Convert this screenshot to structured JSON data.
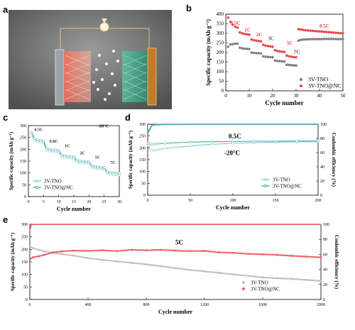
{
  "panels": {
    "a": "a",
    "b": "b",
    "c": "c",
    "d": "d",
    "e": "e"
  },
  "chart_data": [
    {
      "id": "b",
      "type": "scatter",
      "xlabel": "Cycle number",
      "ylabel": "Specific capacity (mAh g⁻¹)",
      "xlim": [
        0,
        50
      ],
      "ylim": [
        0,
        400
      ],
      "xticks": [
        0,
        10,
        20,
        30,
        40,
        50
      ],
      "yticks": [
        0,
        50,
        100,
        150,
        200,
        250,
        300,
        350,
        400
      ],
      "legend": [
        "3V-TNO",
        "3V-TNO@NC"
      ],
      "legend_position": "bottom-right",
      "annotations": [
        "0.5C",
        "1C",
        "2C",
        "3C",
        "5C",
        "7C",
        "0.5C"
      ],
      "series": [
        {
          "name": "3V-TNO",
          "color": "#7f7f7f",
          "x": [
            1,
            2,
            3,
            4,
            5,
            6,
            7,
            8,
            9,
            10,
            11,
            12,
            13,
            14,
            15,
            16,
            17,
            18,
            19,
            20,
            21,
            22,
            23,
            24,
            25,
            26,
            27,
            28,
            29,
            30,
            31,
            32,
            33,
            34,
            35,
            36,
            37,
            38,
            39,
            40,
            41,
            42,
            43,
            44,
            45,
            46,
            47,
            48,
            49,
            50
          ],
          "y": [
            230,
            242,
            244,
            246,
            246,
            225,
            222,
            220,
            219,
            218,
            200,
            198,
            197,
            196,
            195,
            180,
            178,
            177,
            176,
            175,
            158,
            156,
            155,
            154,
            153,
            136,
            135,
            134,
            133,
            132,
            262,
            266,
            268,
            268,
            269,
            269,
            270,
            270,
            270,
            270,
            270,
            271,
            271,
            271,
            271,
            271,
            270,
            270,
            270,
            270
          ]
        },
        {
          "name": "3V-TNO@NC",
          "color": "#e8474c",
          "x": [
            1,
            2,
            3,
            4,
            5,
            6,
            7,
            8,
            9,
            10,
            11,
            12,
            13,
            14,
            15,
            16,
            17,
            18,
            19,
            20,
            21,
            22,
            23,
            24,
            25,
            26,
            27,
            28,
            29,
            30,
            31,
            32,
            33,
            34,
            35,
            36,
            37,
            38,
            39,
            40,
            41,
            42,
            43,
            44,
            45,
            46,
            47,
            48,
            49,
            50
          ],
          "y": [
            382,
            360,
            345,
            335,
            330,
            305,
            300,
            297,
            295,
            293,
            268,
            264,
            262,
            260,
            258,
            240,
            236,
            234,
            232,
            230,
            212,
            208,
            206,
            204,
            203,
            184,
            180,
            178,
            176,
            175,
            322,
            320,
            318,
            316,
            315,
            314,
            313,
            312,
            311,
            310,
            309,
            308,
            307,
            306,
            305,
            304,
            303,
            302,
            301,
            300
          ]
        }
      ]
    },
    {
      "id": "c",
      "type": "line",
      "xlabel": "Cycle number",
      "ylabel": "Specific capacity (mAh g⁻¹)",
      "xlim": [
        0,
        30
      ],
      "ylim": [
        0,
        300
      ],
      "xticks": [
        0,
        5,
        10,
        15,
        20,
        25,
        30
      ],
      "yticks": [
        0,
        50,
        100,
        150,
        200,
        250,
        300
      ],
      "legend": [
        "3V-TNO",
        "3V-TNO@NC"
      ],
      "legend_position": "bottom-left",
      "annotations": [
        "-20°C",
        "0.5C",
        "0.8C",
        "1C",
        "2C",
        "5C",
        "7C"
      ],
      "series": [
        {
          "name": "3V-TNO",
          "color": "#7fc9cf",
          "x": [
            1,
            2,
            3,
            4,
            5,
            6,
            7,
            8,
            9,
            10,
            11,
            12,
            13,
            14,
            15,
            16,
            17,
            18,
            19,
            20,
            21,
            22,
            23,
            24,
            25,
            26,
            27,
            28,
            29,
            30
          ],
          "y": [
            262,
            238,
            232,
            230,
            228,
            196,
            192,
            190,
            189,
            188,
            168,
            165,
            163,
            162,
            161,
            146,
            143,
            141,
            140,
            139,
            122,
            119,
            117,
            116,
            115,
            98,
            95,
            93,
            92,
            91
          ]
        },
        {
          "name": "3V-TNO@NC",
          "color": "#48a9a6",
          "x": [
            1,
            2,
            3,
            4,
            5,
            6,
            7,
            8,
            9,
            10,
            11,
            12,
            13,
            14,
            15,
            16,
            17,
            18,
            19,
            20,
            21,
            22,
            23,
            24,
            25,
            26,
            27,
            28,
            29,
            30
          ],
          "y": [
            272,
            246,
            240,
            238,
            236,
            204,
            200,
            198,
            197,
            196,
            176,
            173,
            171,
            170,
            169,
            154,
            151,
            149,
            148,
            147,
            130,
            127,
            125,
            124,
            123,
            106,
            103,
            101,
            100,
            99
          ]
        }
      ]
    },
    {
      "id": "d",
      "type": "line",
      "xlabel": "Cycle number",
      "ylabel": "Specific capacity (mAh g⁻¹)",
      "y2label": "Coulombic efficiency (%)",
      "xlim": [
        0,
        200
      ],
      "ylim": [
        0,
        300
      ],
      "y2lim": [
        0,
        100
      ],
      "xticks": [
        0,
        50,
        100,
        150,
        200
      ],
      "yticks": [
        0,
        50,
        100,
        150,
        200,
        250,
        300
      ],
      "y2ticks": [
        0,
        20,
        40,
        60,
        80,
        100
      ],
      "legend": [
        "3V-TNO",
        "3V-TNO@NC"
      ],
      "legend_position": "bottom-right",
      "annotations": [
        "0.5C",
        "-20°C"
      ],
      "series": [
        {
          "name": "3V-TNO",
          "color": "#7fc9cf",
          "x": [
            1,
            3,
            5,
            8,
            12,
            20,
            30,
            50,
            75,
            100,
            125,
            150,
            175,
            200
          ],
          "y": [
            210,
            195,
            190,
            190,
            193,
            197,
            201,
            208,
            215,
            219,
            222,
            224,
            225,
            226
          ]
        },
        {
          "name": "3V-TNO@NC",
          "color": "#48a9a6",
          "x": [
            1,
            3,
            5,
            8,
            12,
            20,
            30,
            50,
            75,
            100,
            125,
            150,
            175,
            200
          ],
          "y": [
            220,
            215,
            215,
            216,
            217,
            219,
            221,
            224,
            226,
            227,
            228,
            228,
            229,
            229
          ]
        },
        {
          "name": "CE 3V-TNO",
          "color": "#7fc9cf",
          "axis": "y2",
          "x": [
            1,
            5,
            10,
            20,
            30,
            40,
            50,
            100,
            150,
            200
          ],
          "y": [
            88,
            98,
            99,
            99.5,
            99.6,
            99.7,
            99.7,
            99.8,
            99.8,
            99.8
          ]
        },
        {
          "name": "CE 3V-TNO@NC",
          "color": "#48a9a6",
          "axis": "y2",
          "x": [
            1,
            5,
            10,
            20,
            30,
            40,
            50,
            100,
            150,
            200
          ],
          "y": [
            90,
            99,
            99.6,
            99.8,
            99.8,
            99.8,
            99.9,
            99.9,
            99.9,
            99.9
          ]
        }
      ]
    },
    {
      "id": "e",
      "type": "scatter",
      "xlabel": "Cycle number",
      "ylabel": "Specific capacity (mAh g⁻¹)",
      "y2label": "Coulombic efficiency (%)",
      "xlim": [
        0,
        2000
      ],
      "ylim": [
        0,
        300
      ],
      "y2lim": [
        0,
        100
      ],
      "xticks": [
        0,
        400,
        800,
        1200,
        1600,
        2000
      ],
      "yticks": [
        0,
        50,
        100,
        150,
        200,
        250,
        300
      ],
      "y2ticks": [
        0,
        20,
        40,
        60,
        80,
        100
      ],
      "legend": [
        "3V-TNO",
        "3V-TNO@NC"
      ],
      "legend_position": "bottom-right",
      "annotations": [
        "5C"
      ],
      "series": [
        {
          "name": "3V-TNO",
          "color": "#bdbdbd",
          "x": [
            1,
            20,
            60,
            100,
            160,
            220,
            300,
            400,
            500,
            600,
            700,
            800,
            900,
            1000,
            1100,
            1200,
            1300,
            1400,
            1500,
            1600,
            1700,
            1800,
            1900,
            2000
          ],
          "y": [
            212,
            205,
            198,
            192,
            186,
            181,
            175,
            165,
            158,
            152,
            146,
            140,
            133,
            125,
            118,
            112,
            106,
            100,
            94,
            88,
            85,
            82,
            78,
            74
          ]
        },
        {
          "name": "3V-TNO@NC",
          "color": "#f05a5e",
          "x": [
            1,
            20,
            60,
            100,
            160,
            220,
            300,
            400,
            500,
            600,
            700,
            800,
            900,
            1000,
            1100,
            1200,
            1300,
            1400,
            1500,
            1600,
            1700,
            1800,
            1900,
            2000
          ],
          "y": [
            160,
            168,
            172,
            178,
            188,
            192,
            195,
            194,
            196,
            193,
            198,
            196,
            198,
            195,
            193,
            194,
            188,
            186,
            182,
            180,
            178,
            174,
            171,
            168
          ]
        },
        {
          "name": "CE",
          "color": "#f05a5e",
          "axis": "y2",
          "x": [
            1,
            10,
            50,
            200,
            400,
            800,
            1200,
            1600,
            2000
          ],
          "y": [
            92,
            99.5,
            99.8,
            99.8,
            99.8,
            99.8,
            99.8,
            99.8,
            99.8
          ]
        }
      ]
    }
  ]
}
